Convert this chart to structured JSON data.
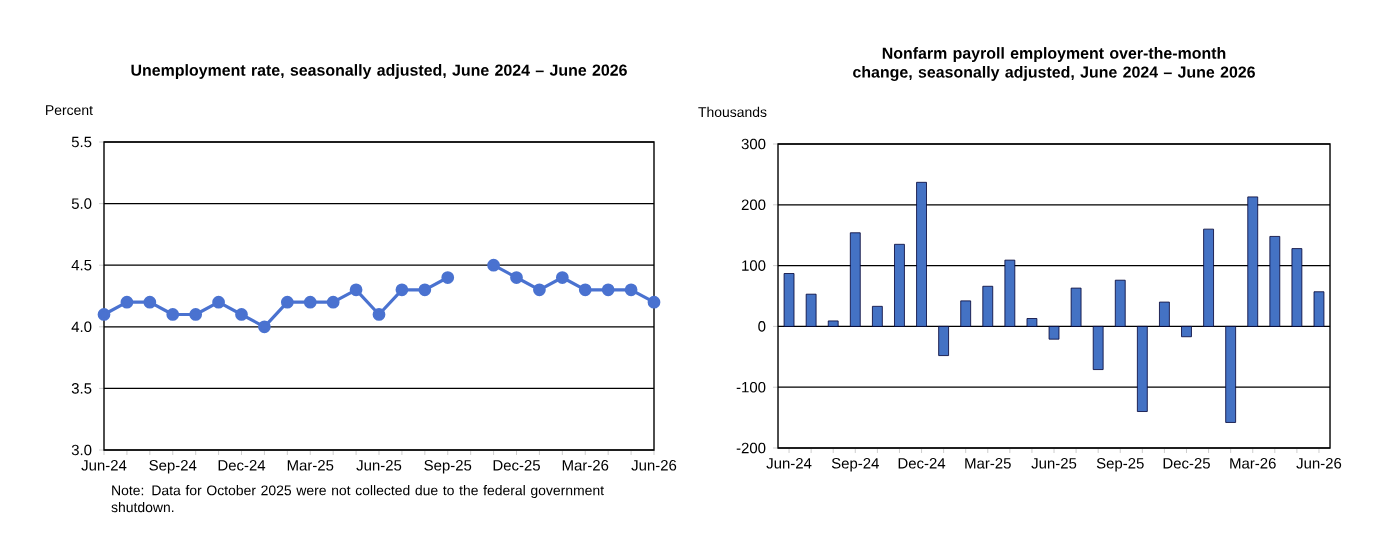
{
  "chart_data": [
    {
      "type": "line",
      "title": "Unemployment rate, seasonally adjusted, June 2024 – June 2026",
      "ylabel": "Percent",
      "categories": [
        "Jun-24",
        null,
        null,
        "Sep-24",
        null,
        null,
        "Dec-24",
        null,
        null,
        "Mar-25",
        null,
        null,
        "Jun-25",
        null,
        null,
        "Sep-25",
        null,
        null,
        "Dec-25",
        null,
        null,
        "Mar-26",
        null,
        null,
        "Jun-26"
      ],
      "series": [
        {
          "color": "#4a72d0",
          "values": [
            4.1,
            4.2,
            4.2,
            4.1,
            4.1,
            4.2,
            4.1,
            4.0,
            4.2,
            4.2,
            4.2,
            4.3,
            4.1,
            4.3,
            4.3,
            4.4,
            null,
            4.5,
            4.4,
            4.3,
            4.4,
            4.3,
            4.3,
            4.3,
            4.2
          ]
        }
      ],
      "ylim": [
        3.0,
        5.5
      ],
      "yticks": [
        {
          "value": 3.0,
          "label": "3.0"
        },
        {
          "value": 3.5,
          "label": "3.5"
        },
        {
          "value": 4.0,
          "label": "4.0"
        },
        {
          "value": 4.5,
          "label": "4.5"
        },
        {
          "value": 5.0,
          "label": "5.0"
        },
        {
          "value": 5.5,
          "label": "5.5"
        }
      ],
      "grid": "y",
      "marker": "circle",
      "line_style": "solid",
      "annotations": [
        "Note: Data for October 2025 were not collected due to the federal government shutdown."
      ]
    },
    {
      "type": "bar",
      "title": "Nonfarm payroll employment over-the-month change, seasonally adjusted, June 2024 – June 2026",
      "ylabel": "Thousands",
      "categories": [
        "Jun-24",
        null,
        null,
        "Sep-24",
        null,
        null,
        "Dec-24",
        null,
        null,
        "Mar-25",
        null,
        null,
        "Jun-25",
        null,
        null,
        "Sep-25",
        null,
        null,
        "Dec-25",
        null,
        null,
        "Mar-26",
        null,
        null,
        "Jun-26"
      ],
      "series": [
        {
          "color": "#4472c4",
          "values": [
            87,
            53,
            9,
            154,
            33,
            135,
            237,
            -48,
            42,
            66,
            109,
            13,
            -21,
            63,
            -71,
            76,
            -140,
            40,
            -17,
            160,
            -158,
            213,
            148,
            128,
            57
          ]
        }
      ],
      "ylim": [
        -200,
        300
      ],
      "yticks": [
        -200,
        -100,
        0,
        100,
        200,
        300
      ],
      "grid": "y"
    }
  ]
}
